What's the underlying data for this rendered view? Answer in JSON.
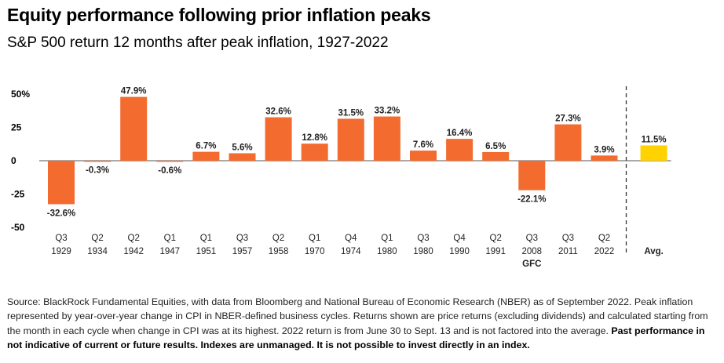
{
  "header": {
    "title": "Equity performance following prior inflation peaks",
    "subtitle": "S&P 500 return 12 months after peak inflation, 1927-2022"
  },
  "chart_data": {
    "type": "bar",
    "title": "Equity performance following prior inflation peaks",
    "subtitle": "S&P 500 return 12 months after peak inflation, 1927-2022",
    "categories": [
      {
        "quarter": "Q3",
        "year": "1929",
        "note": ""
      },
      {
        "quarter": "Q2",
        "year": "1934",
        "note": ""
      },
      {
        "quarter": "Q2",
        "year": "1942",
        "note": ""
      },
      {
        "quarter": "Q1",
        "year": "1947",
        "note": ""
      },
      {
        "quarter": "Q1",
        "year": "1951",
        "note": ""
      },
      {
        "quarter": "Q3",
        "year": "1957",
        "note": ""
      },
      {
        "quarter": "Q2",
        "year": "1958",
        "note": ""
      },
      {
        "quarter": "Q1",
        "year": "1970",
        "note": ""
      },
      {
        "quarter": "Q4",
        "year": "1974",
        "note": ""
      },
      {
        "quarter": "Q1",
        "year": "1980",
        "note": ""
      },
      {
        "quarter": "Q3",
        "year": "1980",
        "note": ""
      },
      {
        "quarter": "Q4",
        "year": "1990",
        "note": ""
      },
      {
        "quarter": "Q2",
        "year": "1991",
        "note": ""
      },
      {
        "quarter": "Q3",
        "year": "2008",
        "note": "GFC"
      },
      {
        "quarter": "Q3",
        "year": "2011",
        "note": ""
      },
      {
        "quarter": "Q2",
        "year": "2022",
        "note": ""
      }
    ],
    "values": [
      -32.6,
      -0.3,
      47.9,
      -0.6,
      6.7,
      5.6,
      32.6,
      12.8,
      31.5,
      33.2,
      7.6,
      16.4,
      6.5,
      -22.1,
      27.3,
      3.9
    ],
    "value_labels": [
      "-32.6%",
      "-0.3%",
      "47.9%",
      "-0.6%",
      "6.7%",
      "5.6%",
      "32.6%",
      "12.8%",
      "31.5%",
      "33.2%",
      "7.6%",
      "16.4%",
      "6.5%",
      "-22.1%",
      "27.3%",
      "3.9%"
    ],
    "average": {
      "label": "Avg.",
      "value": 11.5,
      "value_label": "11.5%"
    },
    "ylim": [
      -50,
      50
    ],
    "yticks": [
      {
        "value": 50,
        "label": "50%"
      },
      {
        "value": 25,
        "label": "25"
      },
      {
        "value": 0,
        "label": "0"
      },
      {
        "value": -25,
        "label": "-25"
      },
      {
        "value": -50,
        "label": "-50"
      }
    ],
    "grid": false,
    "colors": {
      "bar": "#f36b2f",
      "average": "#ffd200",
      "axis": "#555555",
      "divider": "#333333"
    }
  },
  "footnote": {
    "text": "Source: BlackRock Fundamental Equities, with data from Bloomberg and National Bureau of Economic Research (NBER) as of September 2022. Peak inflation represented by year-over-year change in CPI in NBER-defined business cycles. Returns shown are price returns (excluding dividends) and calculated starting from the month in each cycle when change in CPI was at its highest. 2022 return is from June 30 to Sept. 13 and is not factored into the average.",
    "disclaimer": "Past performance in not indicative of current or future results. Indexes are unmanaged. It is not possible to invest directly in an index."
  }
}
